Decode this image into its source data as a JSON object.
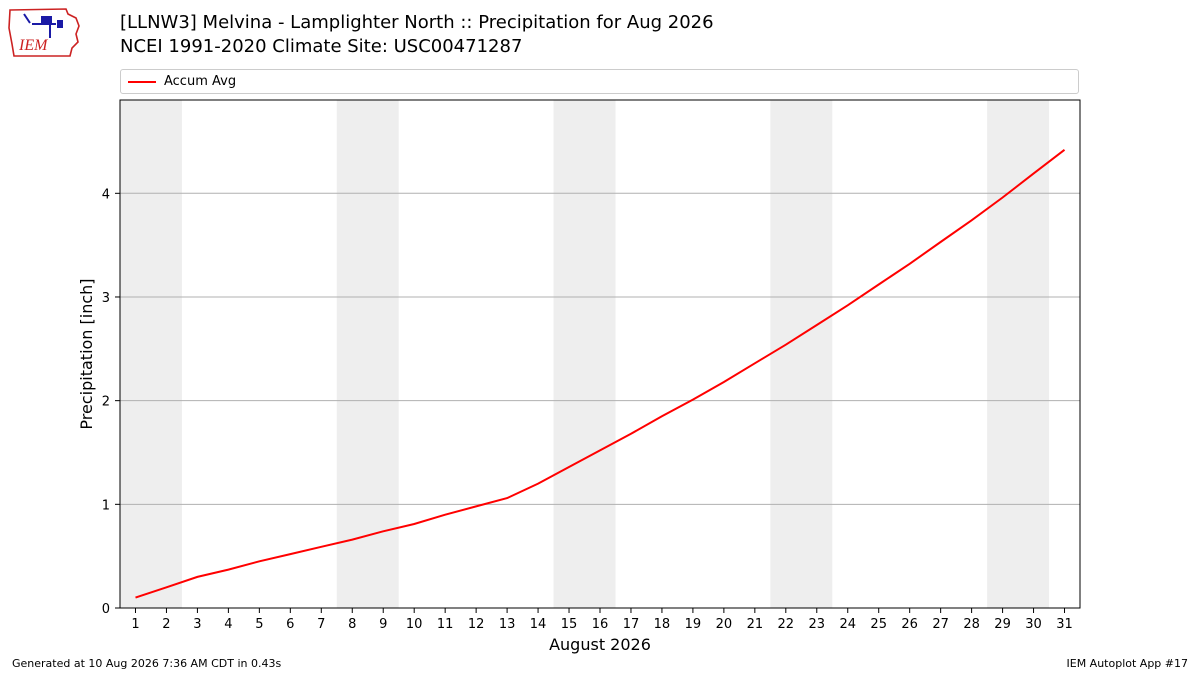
{
  "header": {
    "title_line1": "[LLNW3] Melvina - Lamplighter North :: Precipitation for Aug 2026",
    "title_line2": "NCEI 1991-2020 Climate Site: USC00471287",
    "logo_text": "IEM"
  },
  "legend": {
    "label": "Accum Avg",
    "color": "#ff0000"
  },
  "footer": {
    "generated": "Generated at 10 Aug 2026 7:36 AM CDT in 0.43s",
    "app": "IEM Autoplot App #17"
  },
  "colors": {
    "weekend_shade": "#eeeeee",
    "grid": "#b0b0b0",
    "line": "#ff0000",
    "logo_red": "#cc2222",
    "logo_blue": "#1a1aa6"
  },
  "chart_data": {
    "type": "line",
    "title": "[LLNW3] Melvina - Lamplighter North :: Precipitation for Aug 2026",
    "subtitle": "NCEI 1991-2020 Climate Site: USC00471287",
    "xlabel": "August 2026",
    "ylabel": "Precipitation [inch]",
    "xlim": [
      0.5,
      31.5
    ],
    "ylim": [
      0,
      4.9
    ],
    "x": [
      1,
      2,
      3,
      4,
      5,
      6,
      7,
      8,
      9,
      10,
      11,
      12,
      13,
      14,
      15,
      16,
      17,
      18,
      19,
      20,
      21,
      22,
      23,
      24,
      25,
      26,
      27,
      28,
      29,
      30,
      31
    ],
    "x_tick_labels": [
      "1",
      "2",
      "3",
      "4",
      "5",
      "6",
      "7",
      "8",
      "9",
      "10",
      "11",
      "12",
      "13",
      "14",
      "15",
      "16",
      "17",
      "18",
      "19",
      "20",
      "21",
      "22",
      "23",
      "24",
      "25",
      "26",
      "27",
      "28",
      "29",
      "30",
      "31"
    ],
    "y_ticks": [
      0,
      1,
      2,
      3,
      4
    ],
    "y_tick_labels": [
      "0",
      "1",
      "2",
      "3",
      "4"
    ],
    "grid": "horizontal",
    "legend_position": "top",
    "weekend_spans": [
      [
        0.5,
        2.5
      ],
      [
        7.5,
        9.5
      ],
      [
        14.5,
        16.5
      ],
      [
        21.5,
        23.5
      ],
      [
        28.5,
        30.5
      ]
    ],
    "series": [
      {
        "name": "Accum Avg",
        "color": "#ff0000",
        "values": [
          0.1,
          0.2,
          0.3,
          0.37,
          0.45,
          0.52,
          0.59,
          0.66,
          0.74,
          0.81,
          0.9,
          0.98,
          1.06,
          1.2,
          1.36,
          1.52,
          1.68,
          1.85,
          2.01,
          2.18,
          2.36,
          2.54,
          2.73,
          2.92,
          3.12,
          3.32,
          3.53,
          3.74,
          3.96,
          4.19,
          4.42
        ]
      }
    ]
  }
}
